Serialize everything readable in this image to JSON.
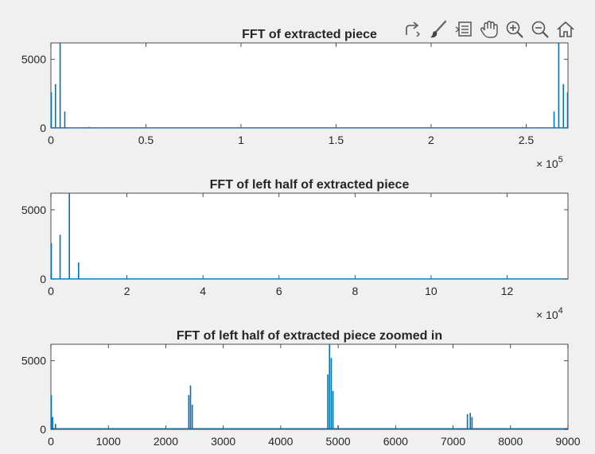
{
  "toolbar": {
    "buttons": [
      {
        "name": "export-icon"
      },
      {
        "name": "brush-icon"
      },
      {
        "name": "data-tips-icon"
      },
      {
        "name": "pan-hand-icon"
      },
      {
        "name": "zoom-in-icon"
      },
      {
        "name": "zoom-out-icon"
      },
      {
        "name": "home-restore-icon"
      }
    ]
  },
  "colors": {
    "series": "#0072BD",
    "axes": "#262626",
    "figure_bg": "#f0f0f0",
    "plot_bg": "#ffffff"
  },
  "chart_data": [
    {
      "type": "line",
      "title": "FFT of extracted piece",
      "xlim": [
        0,
        272000
      ],
      "ylim": [
        0,
        6200
      ],
      "xticks": [
        0,
        50000,
        100000,
        150000,
        200000,
        250000
      ],
      "xtick_labels": [
        "0",
        "0.5",
        "1",
        "1.5",
        "2",
        "2.5"
      ],
      "yticks": [
        0,
        5000
      ],
      "ytick_labels": [
        "0",
        "5000"
      ],
      "exponent_label": {
        "base": "× 10",
        "power": "5"
      },
      "series": [
        {
          "peaks": [
            [
              0,
              2600
            ],
            [
              2400,
              3200
            ],
            [
              4850,
              6200
            ],
            [
              7300,
              1200
            ],
            [
              20000,
              80
            ],
            [
              248000,
              80
            ],
            [
              264700,
              1200
            ],
            [
              267150,
              6200
            ],
            [
              269600,
              3200
            ],
            [
              272000,
              2600
            ]
          ],
          "baseline": 20
        }
      ]
    },
    {
      "type": "line",
      "title": "FFT of left half of extracted piece",
      "xlim": [
        0,
        136000
      ],
      "ylim": [
        0,
        6200
      ],
      "xticks": [
        0,
        20000,
        40000,
        60000,
        80000,
        100000,
        120000
      ],
      "xtick_labels": [
        "0",
        "2",
        "4",
        "6",
        "8",
        "10",
        "12"
      ],
      "yticks": [
        0,
        5000
      ],
      "ytick_labels": [
        "0",
        "5000"
      ],
      "exponent_label": {
        "base": "× 10",
        "power": "4"
      },
      "series": [
        {
          "peaks": [
            [
              0,
              2600
            ],
            [
              2420,
              3200
            ],
            [
              4850,
              6200
            ],
            [
              7280,
              1200
            ],
            [
              20000,
              80
            ],
            [
              40000,
              40
            ]
          ],
          "baseline": 20
        }
      ]
    },
    {
      "type": "line",
      "title": "FFT of left half of extracted piece zoomed in",
      "xlim": [
        0,
        9000
      ],
      "ylim": [
        0,
        6200
      ],
      "xticks": [
        0,
        1000,
        2000,
        3000,
        4000,
        5000,
        6000,
        7000,
        8000,
        9000
      ],
      "xtick_labels": [
        "0",
        "1000",
        "2000",
        "3000",
        "4000",
        "5000",
        "6000",
        "7000",
        "8000",
        "9000"
      ],
      "yticks": [
        0,
        5000
      ],
      "ytick_labels": [
        "0",
        "5000"
      ],
      "exponent_label": null,
      "series": [
        {
          "peaks": [
            [
              0,
              2500
            ],
            [
              30,
              900
            ],
            [
              80,
              400
            ],
            [
              2400,
              2500
            ],
            [
              2430,
              3200
            ],
            [
              2460,
              1800
            ],
            [
              4820,
              4000
            ],
            [
              4850,
              6200
            ],
            [
              4880,
              5200
            ],
            [
              4910,
              2800
            ],
            [
              5000,
              300
            ],
            [
              7250,
              1100
            ],
            [
              7300,
              1200
            ],
            [
              7330,
              900
            ]
          ],
          "baseline": 60
        }
      ]
    }
  ]
}
